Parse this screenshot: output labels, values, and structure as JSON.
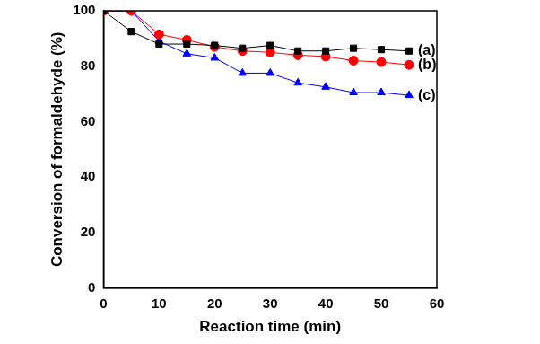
{
  "chart_data": {
    "type": "line",
    "x_label": "Reaction time (min)",
    "y_label": "Conversion of formaldehyde (%)",
    "x": [
      0,
      5,
      10,
      15,
      20,
      25,
      30,
      35,
      40,
      45,
      50,
      55
    ],
    "series": [
      {
        "name": "(a)",
        "color": "#000000",
        "marker": "square",
        "values": [
          100,
          92.5,
          88,
          88,
          87.5,
          86.5,
          87.5,
          85.5,
          85.5,
          86.5,
          86,
          85.5
        ]
      },
      {
        "name": "(b)",
        "color": "#ff0000",
        "marker": "circle",
        "values": [
          100,
          100,
          91.5,
          89.5,
          87,
          85.5,
          85,
          84,
          83.5,
          82,
          81.5,
          80.5
        ]
      },
      {
        "name": "(c)",
        "color": "#0000ff",
        "marker": "triangle",
        "values": [
          100,
          100,
          89,
          84.5,
          83,
          77.5,
          77.5,
          74,
          72.5,
          70.5,
          70.5,
          69.5
        ]
      }
    ],
    "xlim": [
      0,
      60
    ],
    "xticks": [
      0,
      10,
      20,
      30,
      40,
      50,
      60
    ],
    "ylim": [
      0,
      100
    ],
    "yticks": [
      0,
      20,
      40,
      60,
      80,
      100
    ],
    "grid": false
  }
}
